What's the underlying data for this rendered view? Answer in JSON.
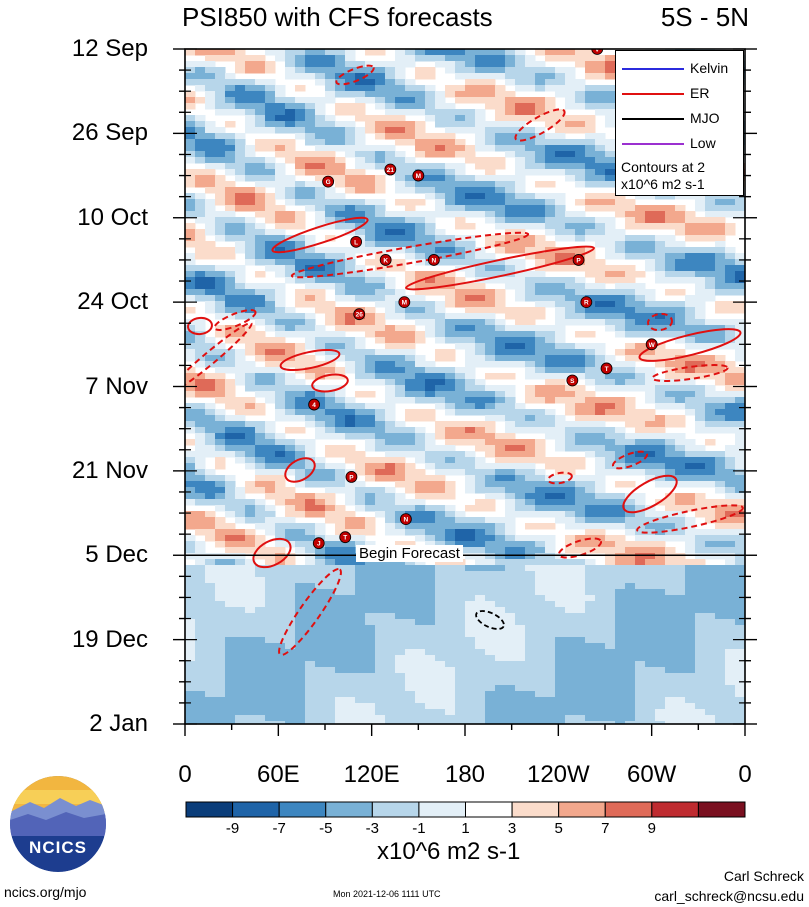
{
  "title_left": "PSI850 with CFS forecasts",
  "title_right": "5S - 5N",
  "chart_data": {
    "type": "heatmap",
    "title": "PSI850 with CFS forecasts",
    "region": "5S - 5N",
    "x_ticks": [
      "0",
      "60E",
      "120E",
      "180",
      "120W",
      "60W",
      "0"
    ],
    "x_range": [
      0,
      360
    ],
    "y_ticks": [
      "12 Sep",
      "26 Sep",
      "10 Oct",
      "24 Oct",
      "7 Nov",
      "21 Nov",
      "5 Dec",
      "19 Dec",
      "2 Jan"
    ],
    "y_range_days": [
      0,
      112
    ],
    "forecast_start_day": 84,
    "forecast_label": "Begin Forecast",
    "colorbar": {
      "labels": [
        "-9",
        "-7",
        "-5",
        "-3",
        "-1",
        "1",
        "3",
        "5",
        "7",
        "9"
      ],
      "levels": [
        -11,
        -9,
        -7,
        -5,
        -3,
        -1,
        1,
        3,
        5,
        7,
        9,
        11
      ],
      "colors": [
        "#0a3d7a",
        "#1f64a8",
        "#3d86c0",
        "#79b1d6",
        "#b7d6ea",
        "#e3eff7",
        "#ffffff",
        "#fbdccb",
        "#f3a88d",
        "#df6a58",
        "#bf2b30",
        "#7a1020"
      ],
      "units": "x10^6 m2 s-1"
    },
    "legend": [
      {
        "name": "Kelvin",
        "color": "#2b2bdd"
      },
      {
        "name": "ER",
        "color": "#e01010"
      },
      {
        "name": "MJO",
        "color": "#000000"
      },
      {
        "name": "Low",
        "color": "#9b30d0"
      }
    ],
    "contour_note": "Contours at 2 x10^6 m2 s-1",
    "storms": [
      {
        "lon": 132,
        "day": 20,
        "label": "21"
      },
      {
        "lon": 92,
        "day": 22,
        "label": "G"
      },
      {
        "lon": 150,
        "day": 21,
        "label": "M"
      },
      {
        "lon": 110,
        "day": 32,
        "label": "L"
      },
      {
        "lon": 129,
        "day": 35,
        "label": "K"
      },
      {
        "lon": 160,
        "day": 35,
        "label": "N"
      },
      {
        "lon": 253,
        "day": 35,
        "label": "P"
      },
      {
        "lon": 258,
        "day": 42,
        "label": "R"
      },
      {
        "lon": 112,
        "day": 44,
        "label": "26"
      },
      {
        "lon": 141,
        "day": 42,
        "label": "M"
      },
      {
        "lon": 300,
        "day": 49,
        "label": "W"
      },
      {
        "lon": 271,
        "day": 53,
        "label": "T"
      },
      {
        "lon": 249,
        "day": 55,
        "label": "S"
      },
      {
        "lon": 83,
        "day": 59,
        "label": "4"
      },
      {
        "lon": 107,
        "day": 71,
        "label": "P"
      },
      {
        "lon": 142,
        "day": 78,
        "label": "N"
      },
      {
        "lon": 103,
        "day": 81,
        "label": "T"
      },
      {
        "lon": 86,
        "day": 82,
        "label": "J"
      },
      {
        "lon": 265,
        "day": 0,
        "label": "V"
      }
    ]
  },
  "footer": {
    "logo_text": "NCICS",
    "url": "ncics.org/mjo",
    "date": "Mon 2021-12-06 1111 UTC",
    "author": "Carl Schreck",
    "email": "carl_schreck@ncsu.edu"
  }
}
